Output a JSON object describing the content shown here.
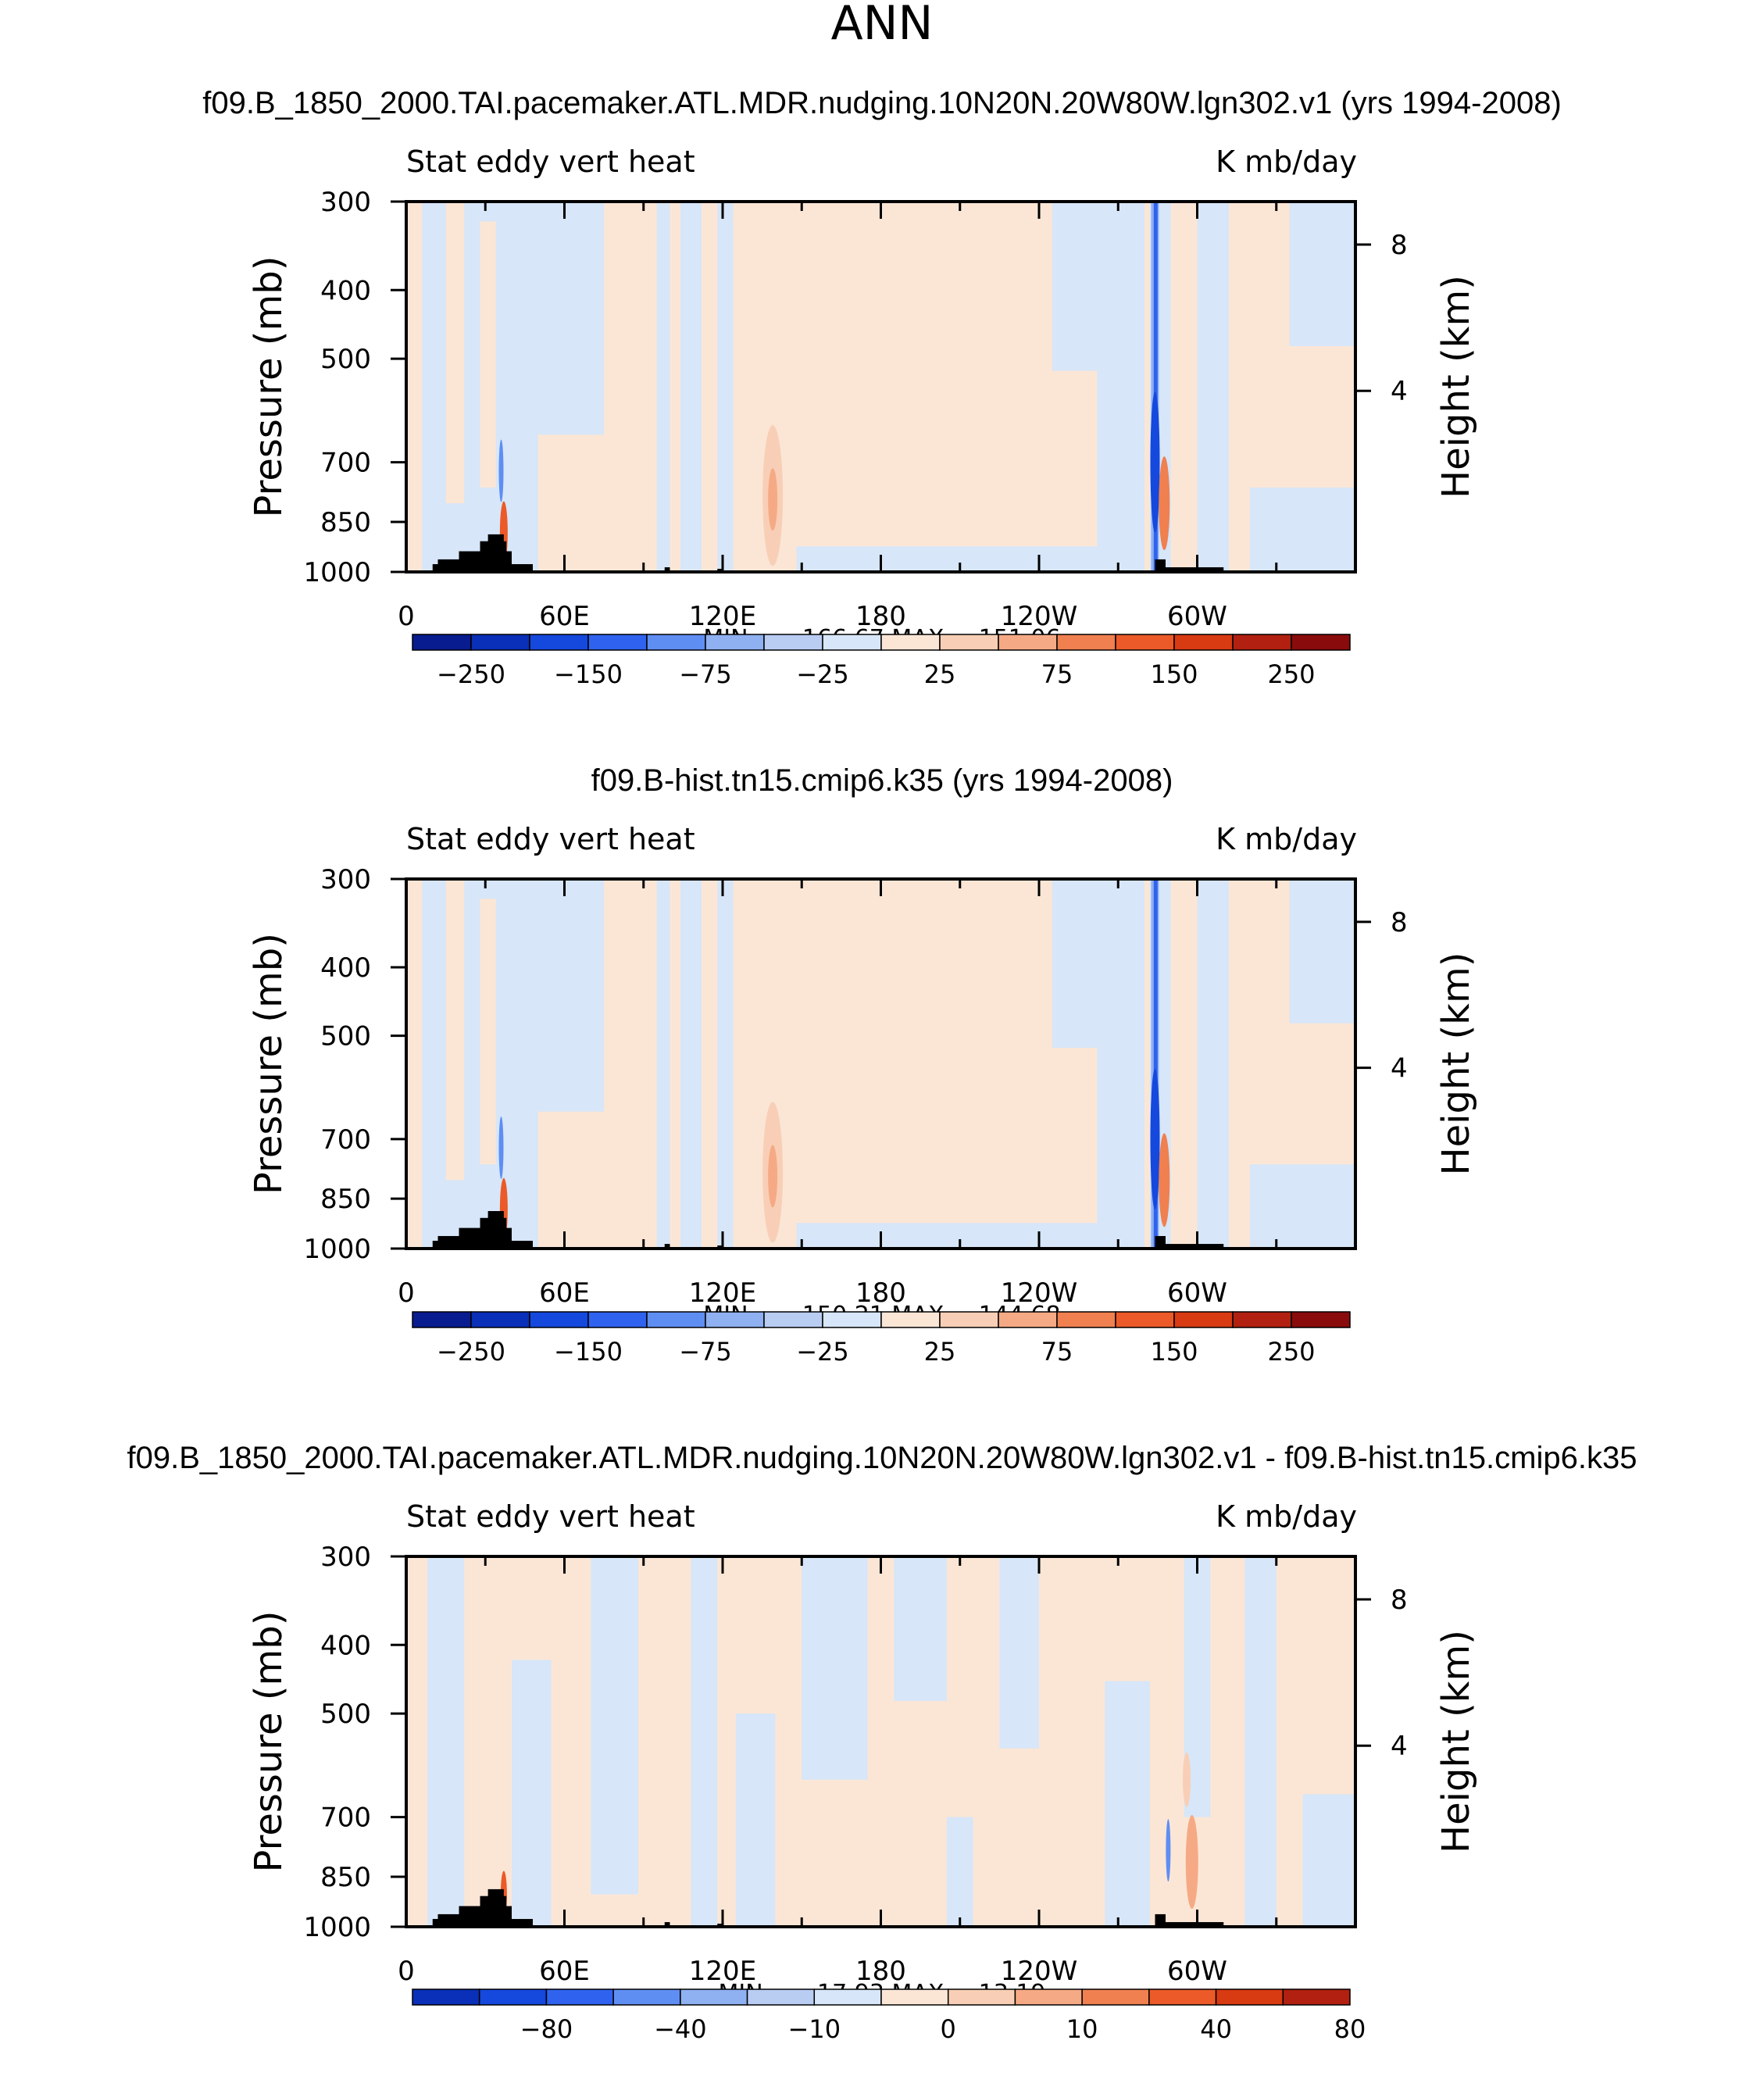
{
  "figure_title": "ANN",
  "colors": {
    "neg": [
      "#081b8f",
      "#0a2fb8",
      "#1548dd",
      "#2f63ef",
      "#5f8ef3",
      "#8fb0f1",
      "#b9cdf3",
      "#d7e6f8"
    ],
    "pos": [
      "#fbe6d6",
      "#f8cfb6",
      "#f5aa85",
      "#f08050",
      "#eb5a28",
      "#d83a12",
      "#b12010",
      "#8a0b0b"
    ],
    "land": "#000000"
  },
  "panels": [
    {
      "title": "f09.B_1850_2000.TAI.pacemaker.ATL.MDR.nudging.10N20N.20W80W.lgn302.v1 (yrs 1994-2008)",
      "left_label": "Stat  eddy  vert  heat",
      "right_label": "K  mb/day",
      "minmax": "MIN  =  −166.67   MAX  =  151.06",
      "colorbar_labels": [
        "−250",
        "−150",
        "−75",
        "−25",
        "25",
        "75",
        "150",
        "250"
      ]
    },
    {
      "title": "f09.B-hist.tn15.cmip6.k35 (yrs 1994-2008)",
      "left_label": "Stat  eddy  vert  heat",
      "right_label": "K  mb/day",
      "minmax": "MIN  =  −150.21   MAX  =  144.68",
      "colorbar_labels": [
        "−250",
        "−150",
        "−75",
        "−25",
        "25",
        "75",
        "150",
        "250"
      ]
    },
    {
      "title": "f09.B_1850_2000.TAI.pacemaker.ATL.MDR.nudging.10N20N.20W80W.lgn302.v1 - f09.B-hist.tn15.cmip6.k35",
      "left_label": "Stat  eddy  vert  heat",
      "right_label": "K  mb/day",
      "minmax": "MIN  =  −17.93   MAX  =    13.19",
      "colorbar_labels": [
        "−80",
        "−40",
        "−10",
        "0",
        "10",
        "40",
        "80"
      ]
    }
  ],
  "chart_data": {
    "type": "heatmap",
    "plot_kind": "longitude-pressure contour",
    "title": "ANN",
    "ylabel": "Pressure  (mb)",
    "y2label": "Height  (km)",
    "x_ticks": [
      "0",
      "60E",
      "120E",
      "180",
      "120W",
      "60W"
    ],
    "x_tick_values": [
      0,
      60,
      120,
      180,
      240,
      300
    ],
    "xlim": [
      0,
      360
    ],
    "y_ticks": [
      "300",
      "400",
      "500",
      "700",
      "850",
      "1000"
    ],
    "y_tick_values": [
      300,
      400,
      500,
      700,
      850,
      1000
    ],
    "ylim": [
      1000,
      300
    ],
    "y2_ticks": [
      "8",
      "4"
    ],
    "y2_tick_values": [
      8,
      4
    ],
    "panels": [
      {
        "title": "f09.B_1850_2000.TAI.pacemaker.ATL.MDR.nudging.10N20N.20W80W.lgn302.v1 (yrs 1994-2008)",
        "field": "Stat eddy vert heat",
        "units": "K mb/day",
        "min": -166.67,
        "max": 151.06,
        "contour_levels": [
          -250,
          -200,
          -150,
          -100,
          -75,
          -50,
          -25,
          0,
          25,
          50,
          75,
          100,
          150,
          200,
          250
        ]
      },
      {
        "title": "f09.B-hist.tn15.cmip6.k35 (yrs 1994-2008)",
        "field": "Stat eddy vert heat",
        "units": "K mb/day",
        "min": -150.21,
        "max": 144.68,
        "contour_levels": [
          -250,
          -200,
          -150,
          -100,
          -75,
          -50,
          -25,
          0,
          25,
          50,
          75,
          100,
          150,
          200,
          250
        ]
      },
      {
        "title": "f09.B_1850_2000.TAI.pacemaker.ATL.MDR.nudging.10N20N.20W80W.lgn302.v1 - f09.B-hist.tn15.cmip6.k35",
        "field": "Stat eddy vert heat",
        "units": "K mb/day",
        "min": -17.93,
        "max": 13.19,
        "contour_levels": [
          -80,
          -60,
          -40,
          -20,
          -10,
          -5,
          0,
          5,
          10,
          20,
          40,
          60,
          80
        ]
      }
    ]
  }
}
